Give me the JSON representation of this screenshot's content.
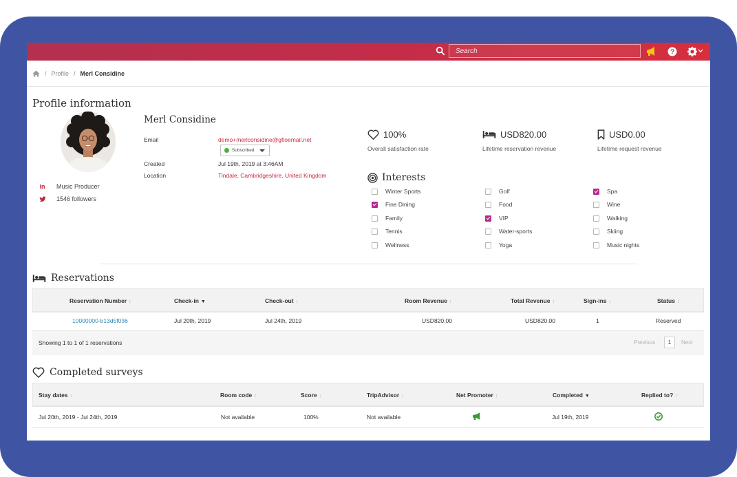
{
  "topbar": {
    "search_placeholder": "Search",
    "icons": [
      "search-icon",
      "megaphone-icon",
      "help-icon",
      "gear-icon",
      "chevron-down-icon"
    ]
  },
  "breadcrumb": {
    "items": [
      "Profile",
      "Merl Considine"
    ]
  },
  "profile": {
    "section_title": "Profile information",
    "name": "Merl Considine",
    "occupation": "Music Producer",
    "followers": "1546 followers",
    "email_label": "Email",
    "email": "demo+merlconsidine@gfioemail.net",
    "subscription_status": "Subscribed",
    "created_label": "Created",
    "created": "Jul 19th, 2019 at 3:46AM",
    "location_label": "Location",
    "location": "Tindale, Cambridgeshire, United Kingdom",
    "social_icons": [
      "linkedin-icon",
      "twitter-icon"
    ]
  },
  "stats": [
    {
      "value": "100%",
      "label": "Overall satisfaction rate",
      "icon": "heart-icon"
    },
    {
      "value": "USD820.00",
      "label": "Lifetime reservation revenue",
      "icon": "bed-icon"
    },
    {
      "value": "USD0.00",
      "label": "Lifetime request revenue",
      "icon": "bookmark-icon"
    }
  ],
  "interests": {
    "title": "Interests",
    "items": [
      {
        "label": "Winter Sports",
        "checked": false
      },
      {
        "label": "Fine Dining",
        "checked": true
      },
      {
        "label": "Family",
        "checked": false
      },
      {
        "label": "Tennis",
        "checked": false
      },
      {
        "label": "Wellness",
        "checked": false
      },
      {
        "label": "Golf",
        "checked": false
      },
      {
        "label": "Food",
        "checked": false
      },
      {
        "label": "VIP",
        "checked": true
      },
      {
        "label": "Water-sports",
        "checked": false
      },
      {
        "label": "Yoga",
        "checked": false
      },
      {
        "label": "Spa",
        "checked": true
      },
      {
        "label": "Wine",
        "checked": false
      },
      {
        "label": "Walking",
        "checked": false
      },
      {
        "label": "Skiing",
        "checked": false
      },
      {
        "label": "Music nights",
        "checked": false
      }
    ]
  },
  "reservations": {
    "title": "Reservations",
    "columns": [
      "Reservation Number",
      "Check-in",
      "Check-out",
      "Room Revenue",
      "Total Revenue",
      "Sign-ins",
      "Status"
    ],
    "rows": [
      [
        "10000000-b13d5f036",
        "Jul 20th, 2019",
        "Jul 24th, 2019",
        "USD820.00",
        "USD820.00",
        "1",
        "Reserved"
      ]
    ],
    "footer": "Showing 1 to 1 of 1 reservations",
    "pager": {
      "previous": "Previous",
      "page": "1",
      "next": "Next"
    }
  },
  "surveys": {
    "title": "Completed surveys",
    "columns": [
      "Stay dates",
      "Room code",
      "Score",
      "TripAdvisor",
      "Net Promoter",
      "Completed",
      "Replied to?"
    ],
    "rows": [
      [
        "Jul 20th, 2019 - Jul 24th, 2019",
        "Not available",
        "100%",
        "Not available",
        "",
        "Jul 19th, 2019",
        ""
      ]
    ],
    "row_icons": [
      "megaphone-icon",
      "check-circle-icon"
    ]
  },
  "colors": {
    "frame": "#3f55a3",
    "topbar_start": "#b3304f",
    "topbar_end": "#d62f3d",
    "accent_red": "#c9283d",
    "link_blue": "#2f8ab7",
    "checked_purple": "#b42b8e",
    "success_green": "#4caf3a"
  }
}
